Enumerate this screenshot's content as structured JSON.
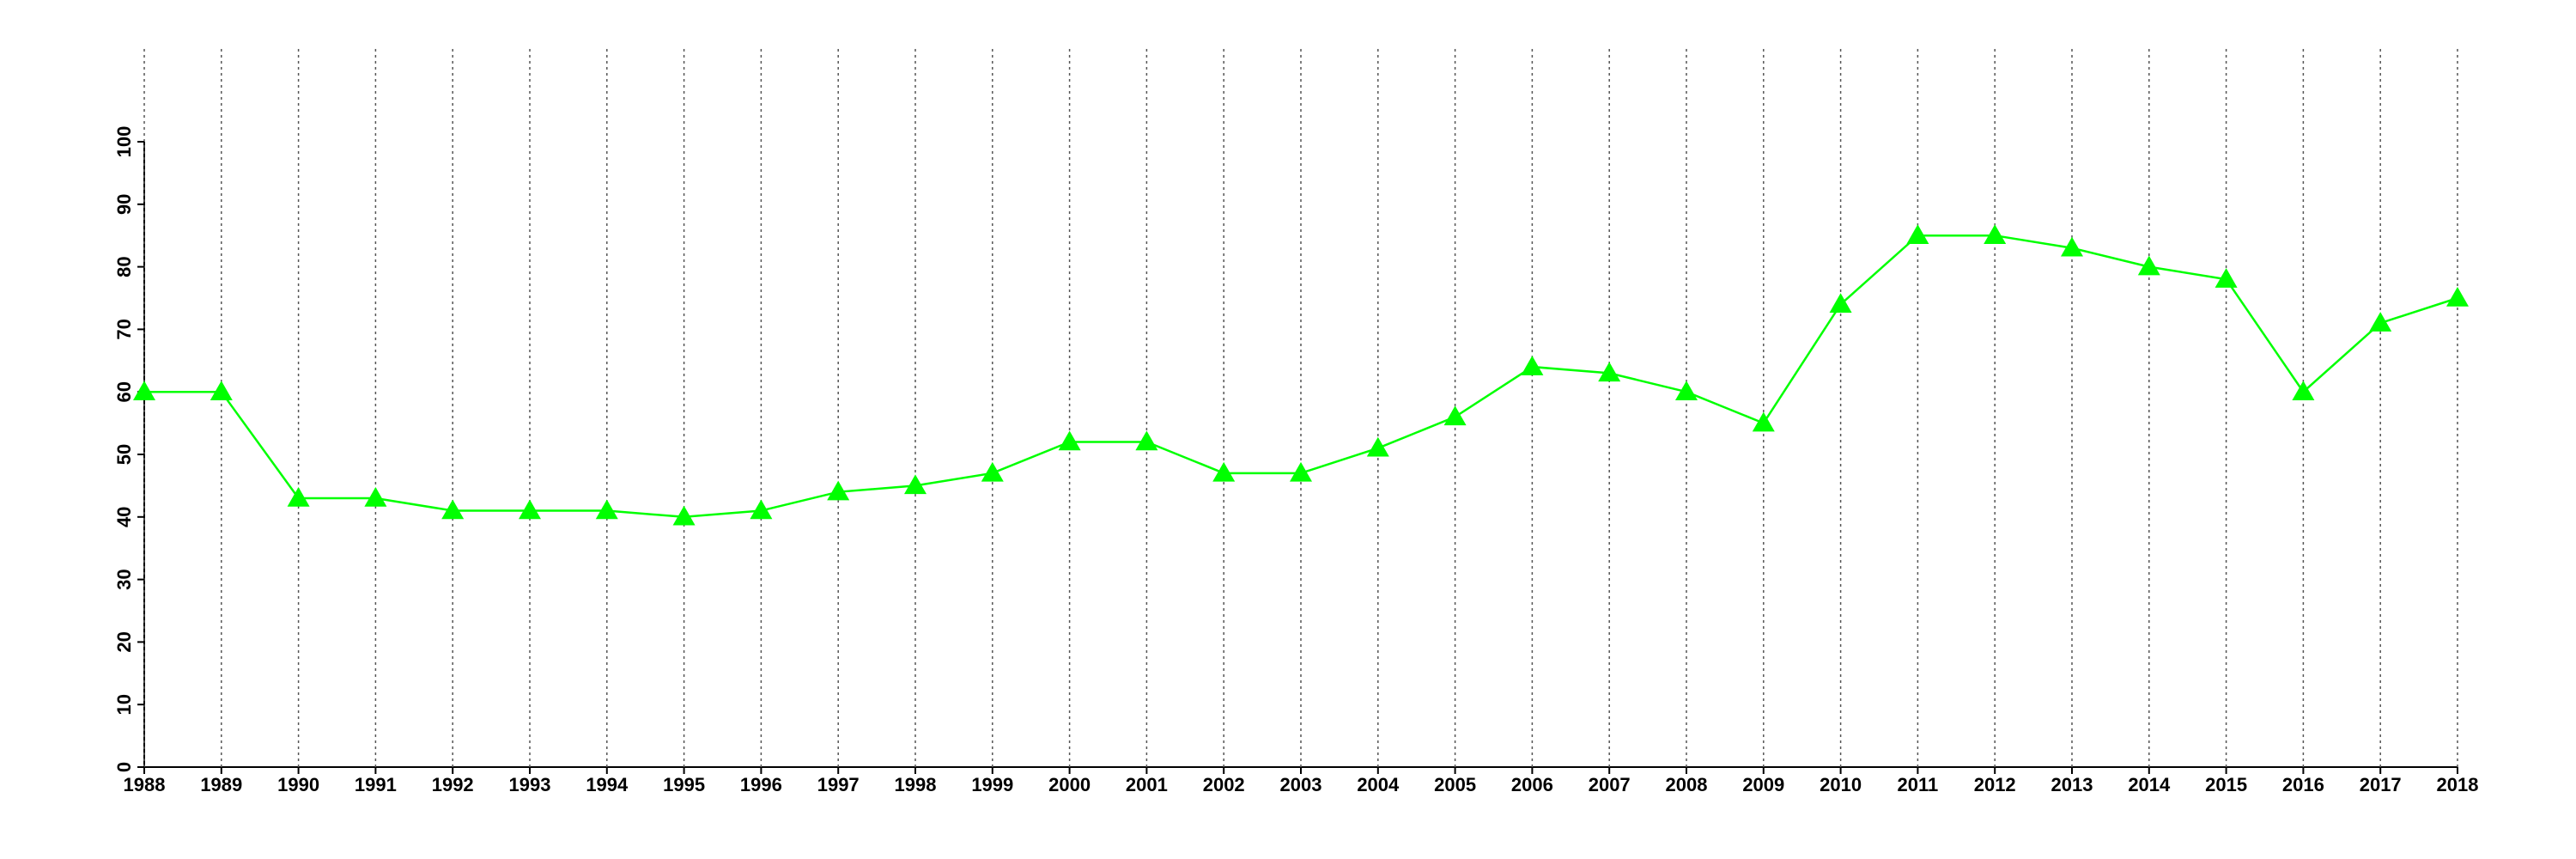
{
  "chart_data": {
    "type": "line",
    "x": [
      1988,
      1989,
      1990,
      1991,
      1992,
      1993,
      1994,
      1995,
      1996,
      1997,
      1998,
      1999,
      2000,
      2001,
      2002,
      2003,
      2004,
      2005,
      2006,
      2007,
      2008,
      2009,
      2010,
      2011,
      2012,
      2013,
      2014,
      2015,
      2016,
      2017,
      2018
    ],
    "series": [
      {
        "color": "#00ff00",
        "marker": "triangle",
        "values": [
          60,
          60,
          43,
          43,
          41,
          41,
          41,
          40,
          41,
          44,
          45,
          47,
          52,
          52,
          47,
          47,
          51,
          56,
          64,
          63,
          60,
          55,
          74,
          85,
          85,
          83,
          80,
          78,
          60,
          71,
          75
        ]
      }
    ],
    "xlim": [
      1988,
      2018
    ],
    "xticks": [
      1988,
      1989,
      1990,
      1991,
      1992,
      1993,
      1994,
      1995,
      1996,
      1997,
      1998,
      1999,
      2000,
      2001,
      2002,
      2003,
      2004,
      2005,
      2006,
      2007,
      2008,
      2009,
      2010,
      2011,
      2012,
      2013,
      2014,
      2015,
      2016,
      2017,
      2018
    ],
    "ylim": [
      0,
      100
    ],
    "yticks": [
      0,
      10,
      20,
      30,
      40,
      50,
      60,
      70,
      80,
      90,
      100
    ],
    "xgrid": true
  }
}
